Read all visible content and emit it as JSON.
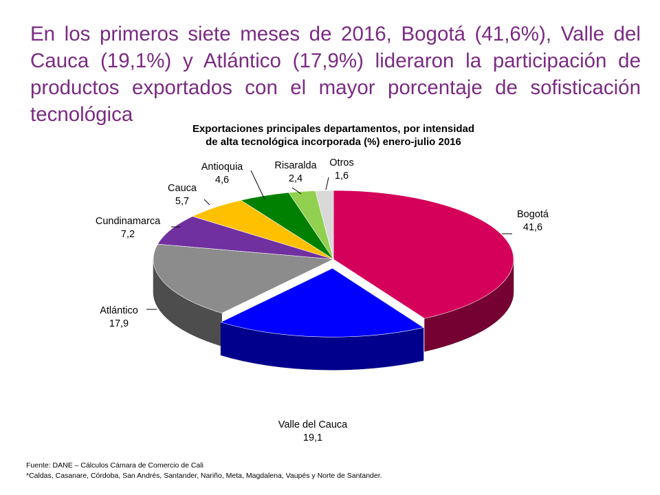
{
  "headline": "En los primeros siete meses de 2016, Bogotá (41,6%), Valle del Cauca (19,1%) y Atlántico (17,9%) lideraron la participación de productos exportados con el mayor porcentaje de sofisticación tecnológica",
  "chart_data": {
    "type": "pie",
    "title_line1": "Exportaciones principales departamentos, por intensidad",
    "title_line2": "de alta tecnológica incorporada (%) enero-julio 2016",
    "slices": [
      {
        "name": "Bogotá",
        "value": 41.6,
        "value_label": "41,6",
        "color": "#d4005a"
      },
      {
        "name": "Valle del Cauca",
        "value": 19.1,
        "value_label": "19,1",
        "color": "#0000ff"
      },
      {
        "name": "Atlántico",
        "value": 17.9,
        "value_label": "17,9",
        "color": "#8c8c8c"
      },
      {
        "name": "Cundinamarca",
        "value": 7.2,
        "value_label": "7,2",
        "color": "#7030a0"
      },
      {
        "name": "Cauca",
        "value": 5.7,
        "value_label": "5,7",
        "color": "#ffc000"
      },
      {
        "name": "Antioquia",
        "value": 4.6,
        "value_label": "4,6",
        "color": "#008000"
      },
      {
        "name": "Risaralda",
        "value": 2.4,
        "value_label": "2,4",
        "color": "#92d050"
      },
      {
        "name": "Otros",
        "value": 1.6,
        "value_label": "1,6",
        "color": "#d9d9d9"
      }
    ]
  },
  "footer": {
    "source": "Fuente: DANE – Cálculos Cámara de Comercio de Cali",
    "note": "*Caldas, Casanare, Córdoba, San Andrés, Santander, Nariño, Meta, Magdalena, Vaupés y Norte de Santander."
  }
}
